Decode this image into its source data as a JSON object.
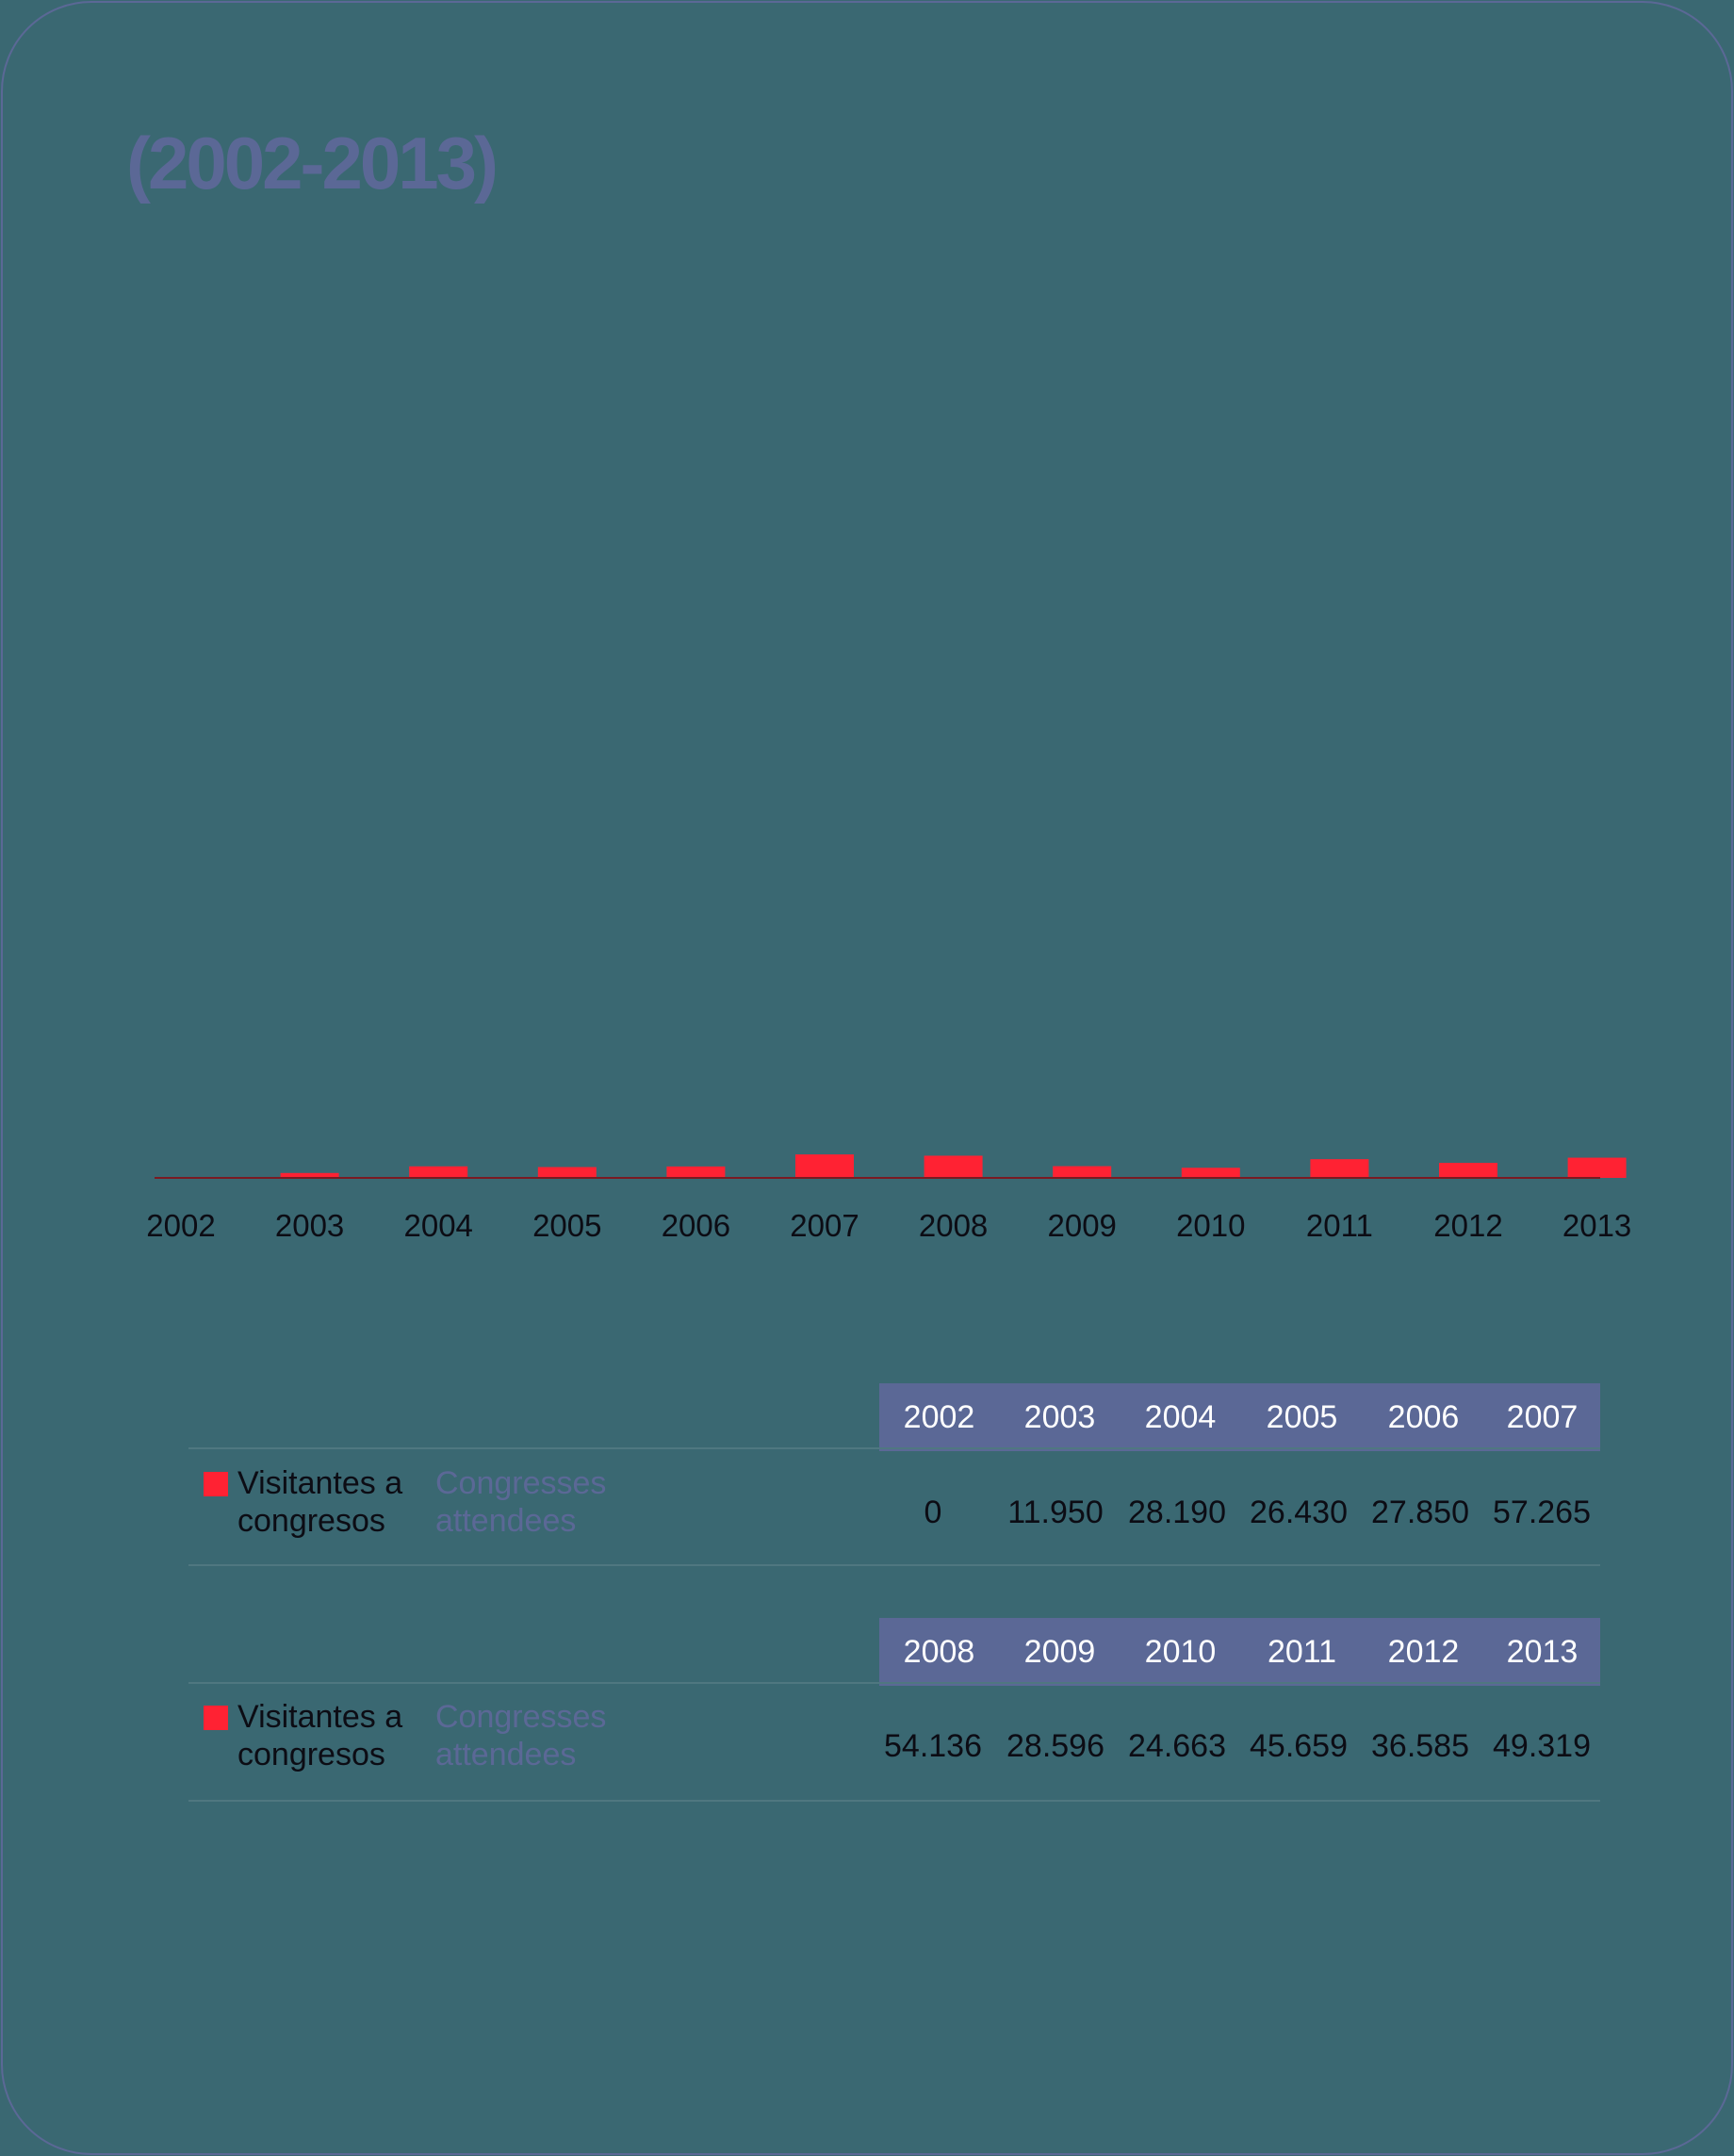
{
  "title": "(2002-2013)",
  "colors": {
    "background": "#3a6872",
    "accent": "#5b6896",
    "bar": "#ff2233",
    "axis": "#7a1a22"
  },
  "chart_data": {
    "type": "bar",
    "categories": [
      "2002",
      "2003",
      "2004",
      "2005",
      "2006",
      "2007",
      "2008",
      "2009",
      "2010",
      "2011",
      "2012",
      "2013"
    ],
    "series": [
      {
        "name": "Visitantes a congresos",
        "values": [
          0,
          11950,
          28190,
          26430,
          27850,
          57265,
          54136,
          28596,
          24663,
          45659,
          36585,
          49319
        ]
      }
    ],
    "ylim": [
      0,
      2300000
    ]
  },
  "tables": [
    {
      "years": [
        "2002",
        "2003",
        "2004",
        "2005",
        "2006",
        "2007"
      ],
      "label_es": "Visitantes a congresos",
      "label_en": "Congresses attendees",
      "values": [
        "0",
        "11.950",
        "28.190",
        "26.430",
        "27.850",
        "57.265"
      ]
    },
    {
      "years": [
        "2008",
        "2009",
        "2010",
        "2011",
        "2012",
        "2013"
      ],
      "label_es": "Visitantes a congresos",
      "label_en": "Congresses attendees",
      "values": [
        "54.136",
        "28.596",
        "24.663",
        "45.659",
        "36.585",
        "49.319"
      ]
    }
  ]
}
